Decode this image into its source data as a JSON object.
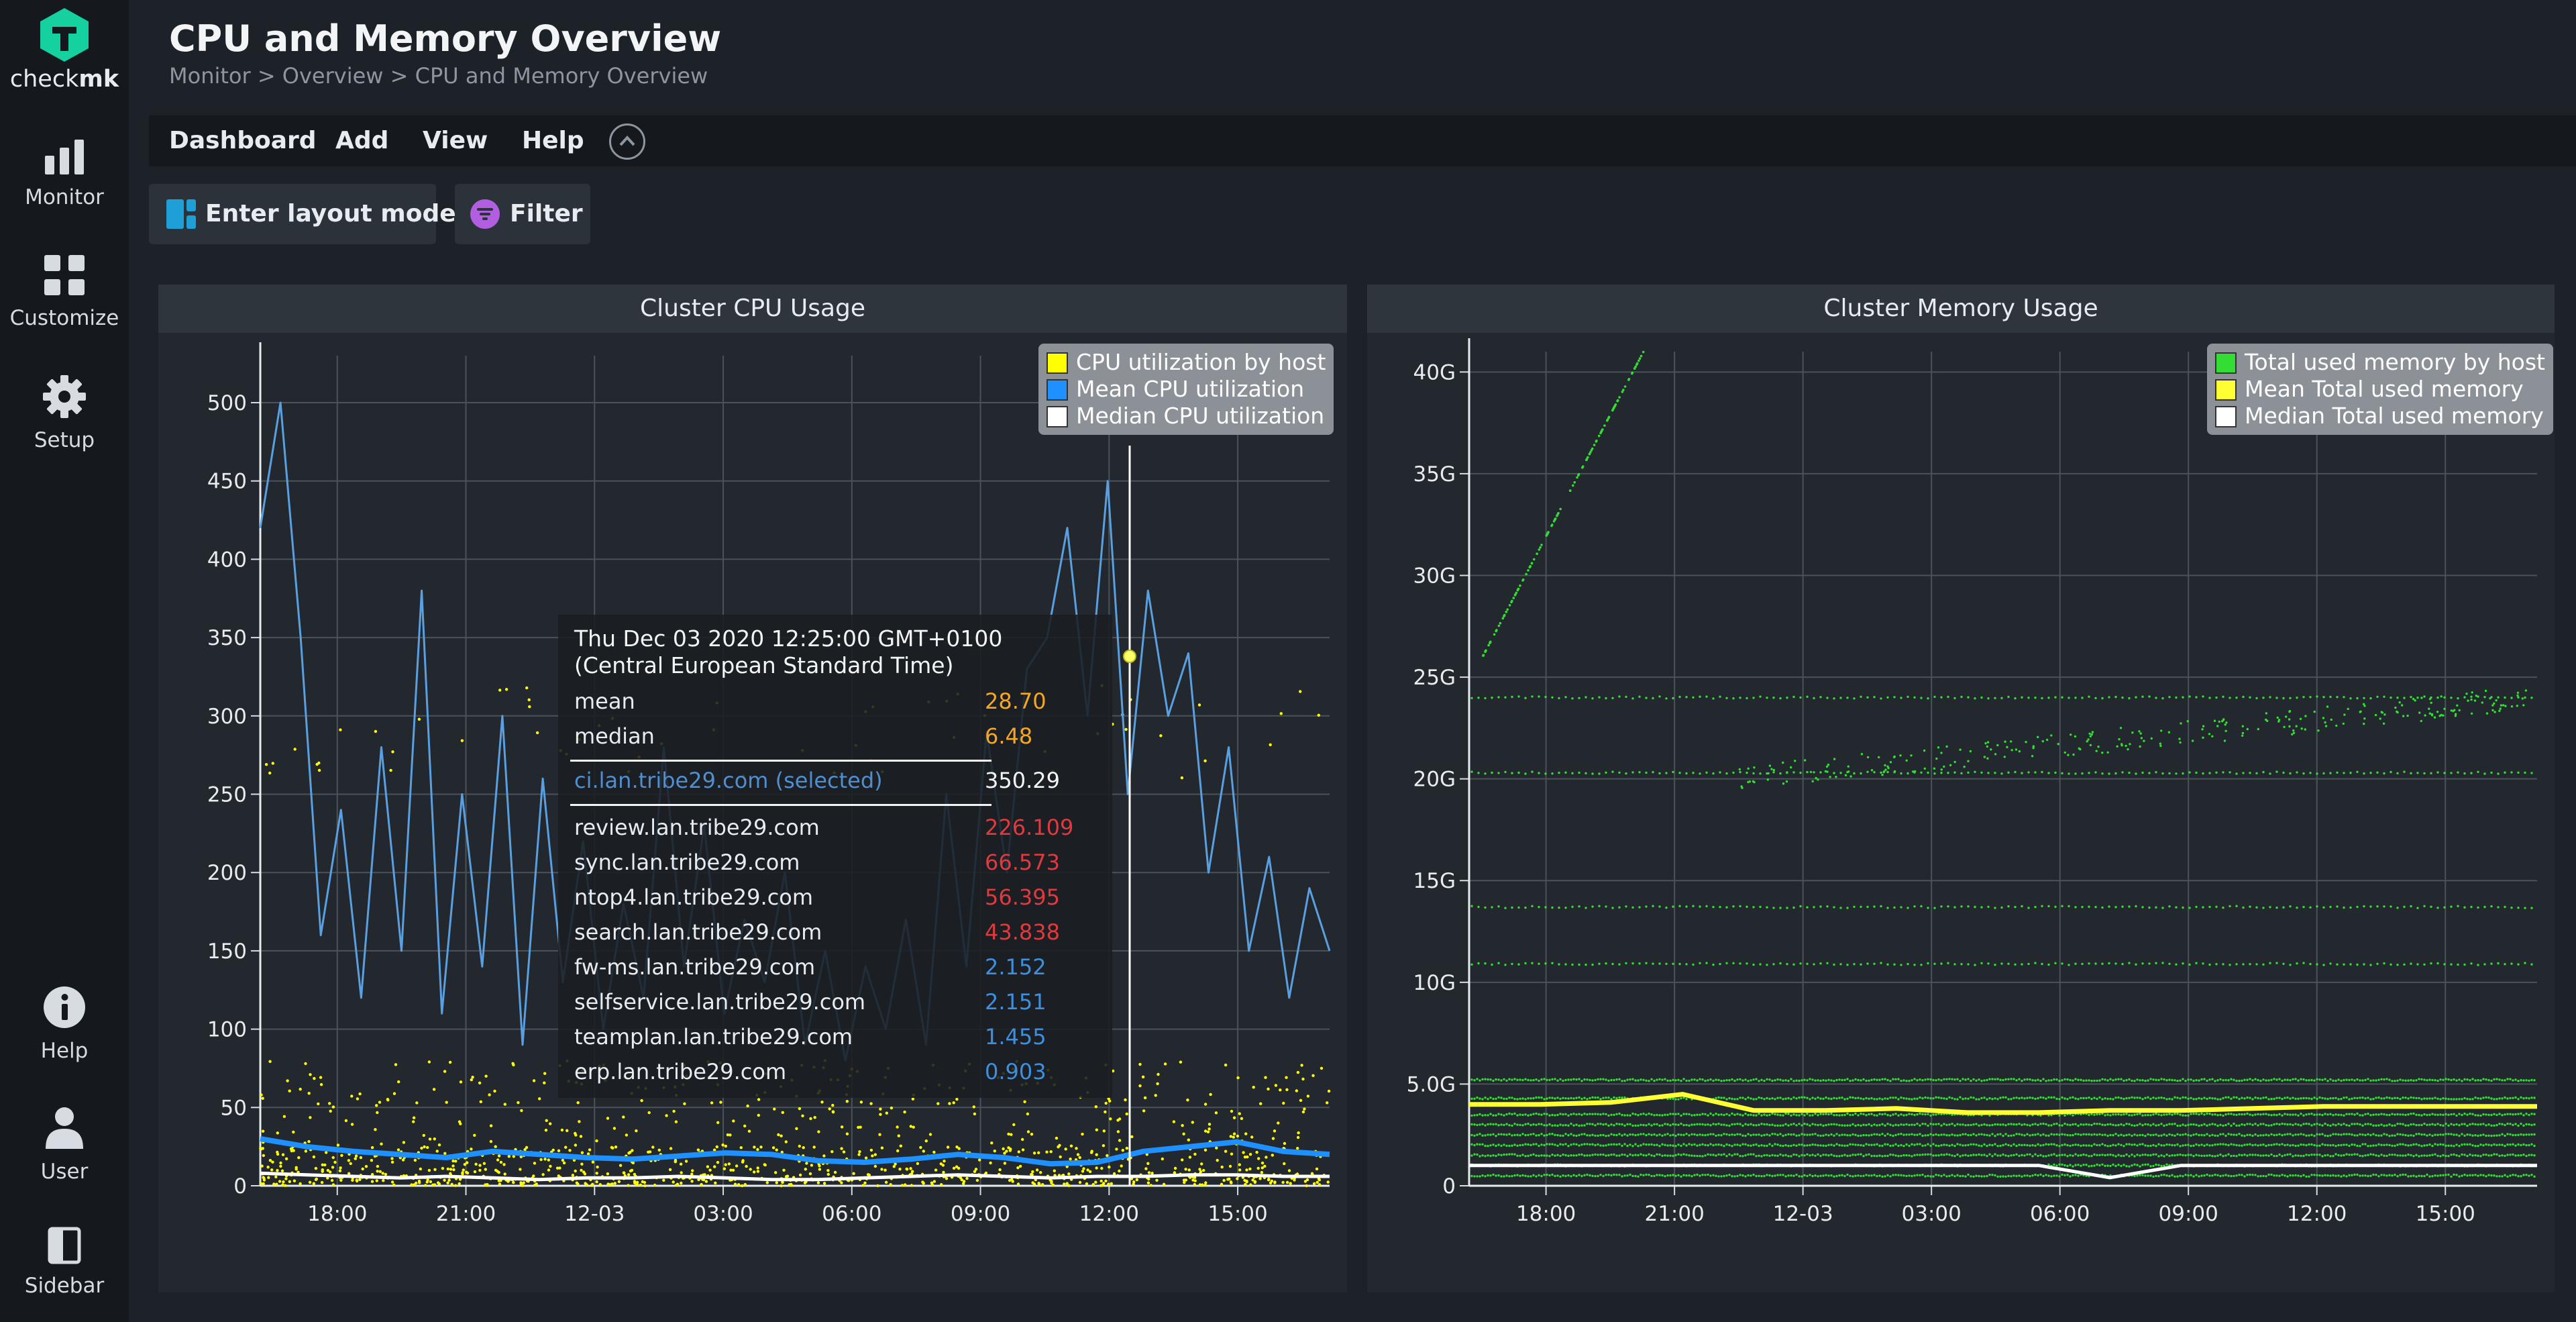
{
  "app": {
    "logo_prefix": "check",
    "logo_suffix": "mk"
  },
  "sidebar": {
    "monitor": "Monitor",
    "customize": "Customize",
    "setup": "Setup",
    "help": "Help",
    "user": "User",
    "sidebar": "Sidebar"
  },
  "header": {
    "title": "CPU and Memory Overview",
    "breadcrumb": "Monitor > Overview > CPU and Memory Overview"
  },
  "menu": {
    "dashboard": "Dashboard",
    "add": "Add",
    "view": "View",
    "help": "Help"
  },
  "toolbar": {
    "layout_mode": "Enter layout mode",
    "filter": "Filter"
  },
  "cpu_dashlet": {
    "title": "Cluster CPU Usage",
    "legend": [
      {
        "label": "CPU utilization by host",
        "color": "#ffff00"
      },
      {
        "label": "Mean CPU utilization",
        "color": "#1e90ff"
      },
      {
        "label": "Median CPU utilization",
        "color": "#ffffff"
      }
    ]
  },
  "memory_dashlet": {
    "title": "Cluster Memory Usage",
    "legend": [
      {
        "label": "Total used memory by host",
        "color": "#33dd33"
      },
      {
        "label": "Mean Total used memory",
        "color": "#ffff33"
      },
      {
        "label": "Median Total used memory",
        "color": "#ffffff"
      }
    ]
  },
  "tooltip": {
    "timestamp": "Thu Dec 03 2020 12:25:00 GMT+0100",
    "timezone": "(Central European Standard Time)",
    "mean_label": "mean",
    "mean_value": "28.70",
    "median_label": "median",
    "median_value": "6.48",
    "selected_host": "ci.lan.tribe29.com (selected)",
    "selected_value": "350.29",
    "hosts": [
      {
        "name": "review.lan.tribe29.com",
        "value": "226.109",
        "color": "#e0393e"
      },
      {
        "name": "sync.lan.tribe29.com",
        "value": "66.573",
        "color": "#e0393e"
      },
      {
        "name": "ntop4.lan.tribe29.com",
        "value": "56.395",
        "color": "#e0393e"
      },
      {
        "name": "search.lan.tribe29.com",
        "value": "43.838",
        "color": "#e0393e"
      },
      {
        "name": "fw-ms.lan.tribe29.com",
        "value": "2.152",
        "color": "#3d8fe0"
      },
      {
        "name": "selfservice.lan.tribe29.com",
        "value": "2.151",
        "color": "#3d8fe0"
      },
      {
        "name": "teamplan.lan.tribe29.com",
        "value": "1.455",
        "color": "#3d8fe0"
      },
      {
        "name": "erp.lan.tribe29.com",
        "value": "0.903",
        "color": "#3d8fe0"
      }
    ]
  },
  "chart_data": [
    {
      "type": "line",
      "title": "Cluster CPU Usage",
      "x_ticks": [
        "18:00",
        "21:00",
        "12-03",
        "03:00",
        "06:00",
        "09:00",
        "12:00",
        "15:00"
      ],
      "y_ticks": [
        "0",
        "50",
        "100",
        "150",
        "200",
        "250",
        "300",
        "350",
        "400",
        "450",
        "500"
      ],
      "ylim": [
        0,
        530
      ],
      "legend_position": "top-right",
      "series": [
        {
          "name": "CPU utilization by host",
          "kind": "points",
          "color": "#ffff00",
          "bands": [
            [
              0,
              8
            ],
            [
              8,
              25
            ],
            [
              25,
              80
            ],
            [
              260,
              320
            ]
          ]
        },
        {
          "name": "Mean CPU utilization",
          "color": "#1e90ff",
          "values": [
            30,
            25,
            22,
            20,
            18,
            22,
            20,
            18,
            17,
            19,
            21,
            20,
            16,
            15,
            17,
            20,
            18,
            14,
            15,
            22,
            25,
            28,
            22,
            20
          ]
        },
        {
          "name": "Median CPU utilization",
          "color": "#ffffff",
          "values": [
            8,
            7,
            6,
            5,
            6,
            5,
            4,
            5,
            5,
            6,
            5,
            4,
            4,
            5,
            6,
            7,
            6,
            5,
            6,
            6,
            7,
            7,
            6,
            6
          ]
        },
        {
          "name": "ci.lan.tribe29.com",
          "color": "#5a9fe0",
          "values": [
            420,
            500,
            350,
            160,
            240,
            120,
            280,
            150,
            380,
            110,
            250,
            140,
            300,
            90,
            260,
            130,
            220,
            100,
            180,
            120,
            280,
            140,
            230,
            110,
            170,
            130,
            200,
            90,
            150,
            80,
            140,
            100,
            170,
            90,
            250,
            140,
            290,
            200,
            330,
            350,
            420,
            300,
            450,
            250,
            380,
            300,
            340,
            200,
            280,
            150,
            210,
            120,
            190,
            150
          ]
        }
      ]
    },
    {
      "type": "scatter",
      "title": "Cluster Memory Usage",
      "x_ticks": [
        "18:00",
        "21:00",
        "12-03",
        "03:00",
        "06:00",
        "09:00",
        "12:00",
        "15:00"
      ],
      "y_ticks": [
        "0",
        "5.0G",
        "10G",
        "15G",
        "20G",
        "25G",
        "30G",
        "35G",
        "40G"
      ],
      "ylim": [
        0,
        41
      ],
      "legend_position": "top-right",
      "series": [
        {
          "name": "Total used memory by host",
          "color": "#33dd33",
          "levels": [
            0.5,
            1.0,
            1.5,
            2.0,
            2.5,
            3.0,
            3.5,
            4.3,
            5.2,
            10.9,
            13.7,
            20.3,
            24.0
          ]
        },
        {
          "name": "Mean Total used memory",
          "color": "#ffff33",
          "values": [
            4.0,
            4.0,
            4.1,
            4.5,
            3.7,
            3.7,
            3.8,
            3.6,
            3.6,
            3.7,
            3.7,
            3.8,
            3.9,
            3.9,
            3.9,
            3.9
          ]
        },
        {
          "name": "Median Total used memory",
          "color": "#ffffff",
          "values": [
            1.0,
            1.0,
            1.0,
            1.0,
            1.0,
            1.0,
            1.0,
            1.0,
            1.0,
            0.4,
            1.0,
            1.0,
            1.0,
            1.0,
            1.0,
            1.0
          ]
        }
      ]
    }
  ]
}
